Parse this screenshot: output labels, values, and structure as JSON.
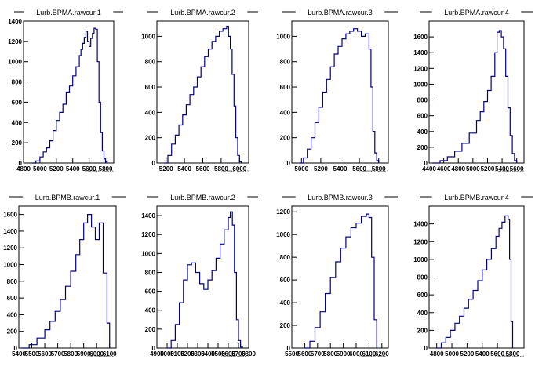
{
  "chart_data": [
    {
      "type": "histogram",
      "title": "Lurb.BPMA.rawcur.1",
      "xlabel": "Lurb.BPMA.rawcur.1",
      "xlim": [
        4800,
        5900
      ],
      "ylim": [
        0,
        1400
      ],
      "xticks": [
        4800,
        5000,
        5200,
        5400,
        5600,
        5800
      ],
      "yticks": [
        0,
        200,
        400,
        600,
        800,
        1000,
        1200,
        1400
      ],
      "x": [
        4900,
        4950,
        5000,
        5040,
        5080,
        5120,
        5160,
        5200,
        5240,
        5280,
        5320,
        5360,
        5400,
        5440,
        5480,
        5500,
        5520,
        5540,
        5560,
        5580,
        5600,
        5620,
        5640,
        5660,
        5680,
        5700,
        5720,
        5740,
        5760,
        5780,
        5800,
        5820
      ],
      "values": [
        0,
        20,
        60,
        110,
        150,
        220,
        320,
        420,
        500,
        580,
        700,
        760,
        860,
        950,
        1060,
        1120,
        1180,
        1240,
        1300,
        1200,
        1150,
        1230,
        1280,
        1330,
        1320,
        1000,
        600,
        300,
        120,
        40,
        10,
        0
      ]
    },
    {
      "type": "histogram",
      "title": "Lurb.BPMA.rawcur.2",
      "xlabel": "Lurb.BPMA.rawcur.2",
      "xlim": [
        5100,
        6100
      ],
      "ylim": [
        0,
        1120
      ],
      "xticks": [
        5200,
        5400,
        5600,
        5800,
        6000
      ],
      "yticks": [
        0,
        200,
        400,
        600,
        800,
        1000
      ],
      "x": [
        5180,
        5220,
        5260,
        5300,
        5340,
        5380,
        5420,
        5460,
        5500,
        5540,
        5580,
        5620,
        5660,
        5700,
        5740,
        5780,
        5820,
        5860,
        5880,
        5900,
        5920,
        5940,
        5960,
        5980,
        6000,
        6020
      ],
      "values": [
        0,
        60,
        150,
        220,
        300,
        380,
        460,
        540,
        600,
        680,
        760,
        840,
        900,
        960,
        1000,
        1040,
        1060,
        1080,
        1000,
        900,
        700,
        450,
        200,
        60,
        10,
        0
      ]
    },
    {
      "type": "histogram",
      "title": "Lurb.BPMA.rawcur.3",
      "xlabel": "Lurb.BPMA.rawcur.3",
      "xlim": [
        4900,
        5900
      ],
      "ylim": [
        0,
        1120
      ],
      "xticks": [
        5000,
        5200,
        5400,
        5600,
        5800
      ],
      "yticks": [
        0,
        200,
        400,
        600,
        800,
        1000
      ],
      "x": [
        4980,
        5020,
        5060,
        5100,
        5140,
        5180,
        5220,
        5260,
        5300,
        5340,
        5380,
        5420,
        5460,
        5500,
        5540,
        5580,
        5620,
        5660,
        5700,
        5720,
        5740,
        5760,
        5780,
        5800
      ],
      "values": [
        0,
        40,
        110,
        200,
        320,
        440,
        560,
        660,
        760,
        860,
        920,
        980,
        1020,
        1040,
        1060,
        1040,
        1000,
        1020,
        900,
        600,
        250,
        80,
        20,
        0
      ]
    },
    {
      "type": "histogram",
      "title": "Lurb.BPMA.rawcur.4",
      "xlabel": "Lurb.BPMA.rawcur.4",
      "xlim": [
        4400,
        5700
      ],
      "ylim": [
        0,
        1800
      ],
      "xticks": [
        4400,
        4600,
        4800,
        5000,
        5200,
        5400,
        5600
      ],
      "yticks": [
        0,
        200,
        400,
        600,
        800,
        1000,
        1200,
        1400,
        1600
      ],
      "x": [
        4450,
        4550,
        4650,
        4750,
        4850,
        4950,
        5050,
        5100,
        5150,
        5200,
        5250,
        5300,
        5330,
        5360,
        5390,
        5420,
        5450,
        5480,
        5510,
        5540,
        5570,
        5600
      ],
      "values": [
        0,
        30,
        80,
        150,
        250,
        380,
        540,
        650,
        780,
        920,
        1100,
        1400,
        1660,
        1680,
        1600,
        1450,
        1100,
        700,
        350,
        120,
        30,
        0
      ]
    },
    {
      "type": "histogram",
      "title": "Lurb.BPMB.rawcur.1",
      "xlabel": "Lurb.BPMB.rawcur.1",
      "xlim": [
        5400,
        6150
      ],
      "ylim": [
        0,
        1700
      ],
      "xticks": [
        5400,
        5500,
        5600,
        5700,
        5800,
        5900,
        6000,
        6100
      ],
      "yticks": [
        0,
        200,
        400,
        600,
        800,
        1000,
        1200,
        1400,
        1600
      ],
      "x": [
        5420,
        5480,
        5540,
        5600,
        5640,
        5680,
        5720,
        5760,
        5800,
        5840,
        5870,
        5900,
        5930,
        5960,
        5990,
        6020,
        6050,
        6080,
        6100
      ],
      "values": [
        0,
        40,
        120,
        220,
        320,
        440,
        580,
        740,
        920,
        1120,
        1300,
        1500,
        1600,
        1450,
        1300,
        1500,
        900,
        300,
        0
      ]
    },
    {
      "type": "histogram",
      "title": "Lurb.BPMB.rawcur.2",
      "xlabel": "Lurb.BPMB.rawcur.2",
      "xlim": [
        4900,
        5800
      ],
      "ylim": [
        0,
        1500
      ],
      "xticks": [
        4900,
        5000,
        5100,
        5200,
        5300,
        5400,
        5500,
        5600,
        5700,
        5800
      ],
      "yticks": [
        0,
        200,
        400,
        600,
        800,
        1000,
        1200,
        1400
      ],
      "x": [
        5000,
        5040,
        5080,
        5120,
        5160,
        5200,
        5240,
        5280,
        5320,
        5360,
        5400,
        5440,
        5480,
        5520,
        5560,
        5600,
        5620,
        5640,
        5660,
        5680,
        5700,
        5720,
        5740
      ],
      "values": [
        0,
        80,
        250,
        480,
        720,
        880,
        900,
        800,
        680,
        620,
        720,
        820,
        950,
        1100,
        1250,
        1380,
        1440,
        1300,
        800,
        300,
        80,
        10,
        0
      ]
    },
    {
      "type": "histogram",
      "title": "Lurb.BPMB.rawcur.3",
      "xlabel": "Lurb.BPMB.rawcur.3",
      "xlim": [
        5500,
        6250
      ],
      "ylim": [
        0,
        1250
      ],
      "xticks": [
        5500,
        5600,
        5700,
        5800,
        5900,
        6000,
        6100,
        6200
      ],
      "yticks": [
        0,
        200,
        400,
        600,
        800,
        1000,
        1200
      ],
      "x": [
        5600,
        5640,
        5680,
        5720,
        5760,
        5800,
        5840,
        5880,
        5920,
        5960,
        6000,
        6040,
        6080,
        6100,
        6120,
        6140,
        6160
      ],
      "values": [
        0,
        60,
        180,
        320,
        480,
        620,
        760,
        880,
        980,
        1060,
        1100,
        1160,
        1180,
        1150,
        800,
        250,
        0
      ]
    },
    {
      "type": "histogram",
      "title": "Lurb.BPMB.rawcur.4",
      "xlabel": "Lurb.BPMB.rawcur.4",
      "xlim": [
        4700,
        5950
      ],
      "ylim": [
        0,
        1600
      ],
      "xticks": [
        4800,
        5000,
        5200,
        5400,
        5600,
        5800
      ],
      "yticks": [
        0,
        200,
        400,
        600,
        800,
        1000,
        1200,
        1400
      ],
      "x": [
        4800,
        4860,
        4920,
        4980,
        5040,
        5100,
        5160,
        5220,
        5280,
        5340,
        5400,
        5460,
        5520,
        5580,
        5620,
        5660,
        5700,
        5740,
        5760,
        5780,
        5800
      ],
      "values": [
        0,
        60,
        120,
        200,
        280,
        360,
        450,
        550,
        650,
        760,
        880,
        1000,
        1120,
        1260,
        1350,
        1420,
        1490,
        1450,
        1000,
        300,
        0
      ]
    }
  ]
}
